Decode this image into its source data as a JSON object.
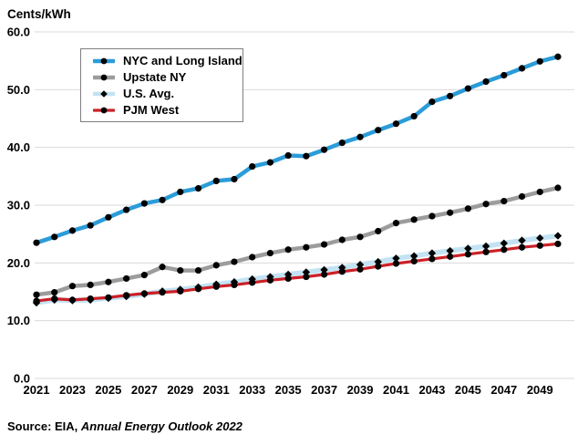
{
  "header": {
    "unit_label": "Cents/kWh"
  },
  "source": {
    "prefix": "Source: EIA, ",
    "publication": "Annual Energy Outlook 2022"
  },
  "colors": {
    "grid": "#d9d9d9",
    "text": "#000000",
    "marker": "#000000",
    "legend_border": "#7f7f7f",
    "nyc_blue": "#2b9cd8",
    "upstate_gray": "#9c9c9c",
    "us_avg_lightblue": "#c3e3f3",
    "pjm_red": "#cb2027"
  },
  "chart_data": {
    "type": "line",
    "title": "",
    "ylabel": "Cents/kWh",
    "xlabel": "",
    "grid": "horizontal",
    "legend_position": "upper-left-inside",
    "ylim": [
      0,
      60
    ],
    "y_ticks": [
      0,
      10,
      20,
      30,
      40,
      50,
      60
    ],
    "y_tick_labels": [
      "0.0",
      "10.0",
      "20.0",
      "30.0",
      "40.0",
      "50.0",
      "60.0"
    ],
    "x": [
      2021,
      2022,
      2023,
      2024,
      2025,
      2026,
      2027,
      2028,
      2029,
      2030,
      2031,
      2032,
      2033,
      2034,
      2035,
      2036,
      2037,
      2038,
      2039,
      2040,
      2041,
      2042,
      2043,
      2044,
      2045,
      2046,
      2047,
      2048,
      2049,
      2050
    ],
    "x_tick_labels": [
      "2021",
      "2023",
      "2025",
      "2027",
      "2029",
      "2031",
      "2033",
      "2035",
      "2037",
      "2039",
      "2041",
      "2043",
      "2045",
      "2047",
      "2049"
    ],
    "series": [
      {
        "name": "NYC and Long Island",
        "slug": "nyc-and-long-island",
        "color": "#2b9cd8",
        "marker": "circle",
        "marker_color": "#000000",
        "line_width": 4.5,
        "values": [
          23.5,
          24.5,
          25.6,
          26.5,
          27.9,
          29.2,
          30.3,
          30.9,
          32.3,
          32.9,
          34.2,
          34.5,
          36.7,
          37.4,
          38.6,
          38.5,
          39.6,
          40.8,
          41.8,
          43.0,
          44.1,
          45.4,
          47.9,
          48.9,
          50.2,
          51.4,
          52.5,
          53.7,
          54.9,
          55.7
        ]
      },
      {
        "name": "Upstate NY",
        "slug": "upstate-ny",
        "color": "#9c9c9c",
        "marker": "circle",
        "marker_color": "#000000",
        "line_width": 4.5,
        "values": [
          14.5,
          14.9,
          16.0,
          16.2,
          16.7,
          17.3,
          17.9,
          19.3,
          18.7,
          18.7,
          19.6,
          20.2,
          21.0,
          21.7,
          22.3,
          22.7,
          23.2,
          24.0,
          24.5,
          25.5,
          26.9,
          27.5,
          28.1,
          28.7,
          29.4,
          30.2,
          30.7,
          31.5,
          32.3,
          33.0
        ]
      },
      {
        "name": "U.S. Avg.",
        "slug": "us-avg",
        "color": "#c3e3f3",
        "marker": "diamond",
        "marker_color": "#000000",
        "line_width": 5.5,
        "values": [
          13.1,
          13.6,
          13.5,
          13.6,
          13.9,
          14.2,
          14.6,
          15.1,
          15.4,
          15.8,
          16.3,
          16.7,
          17.2,
          17.6,
          18.0,
          18.4,
          18.8,
          19.2,
          19.7,
          20.2,
          20.8,
          21.2,
          21.7,
          22.1,
          22.5,
          22.9,
          23.4,
          23.9,
          24.3,
          24.7
        ]
      },
      {
        "name": "PJM West",
        "slug": "pjm-west",
        "color": "#cb2027",
        "marker": "circle",
        "marker_color": "#000000",
        "line_width": 3.2,
        "values": [
          13.4,
          13.8,
          13.6,
          13.8,
          14.0,
          14.4,
          14.7,
          14.9,
          15.1,
          15.5,
          15.9,
          16.2,
          16.6,
          17.0,
          17.3,
          17.6,
          18.0,
          18.5,
          18.9,
          19.4,
          19.9,
          20.3,
          20.7,
          21.1,
          21.5,
          21.9,
          22.3,
          22.7,
          23.0,
          23.3
        ]
      }
    ]
  }
}
